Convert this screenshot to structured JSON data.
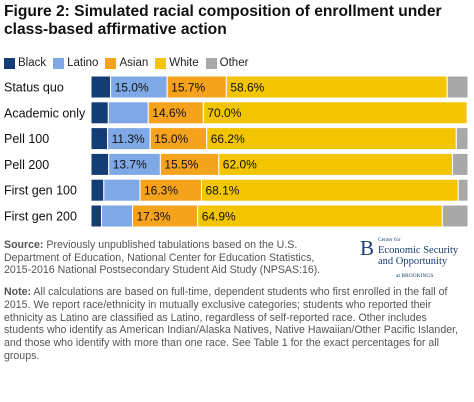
{
  "title": "Figure 2: Simulated racial composition of enrollment under class-based affirmative action",
  "colors": {
    "Black": "#143d75",
    "Latino": "#7fa8e6",
    "Asian": "#f5a21c",
    "White": "#f2c500",
    "Other": "#a8a8a8",
    "separator": "#ffffff",
    "label_text": "#111111"
  },
  "chart_data": {
    "type": "bar",
    "orientation": "horizontal",
    "stacked": true,
    "normalized": true,
    "xlim": [
      0,
      100
    ],
    "unit": "%",
    "categories": [
      "Status quo",
      "Academic only",
      "Pell 100",
      "Pell 200",
      "First gen 100",
      "First gen 200"
    ],
    "series": [
      {
        "name": "Black",
        "values": [
          5.2,
          4.6,
          4.4,
          4.7,
          3.4,
          2.8
        ]
      },
      {
        "name": "Latino",
        "values": [
          15.0,
          10.6,
          11.3,
          13.7,
          9.6,
          8.2
        ]
      },
      {
        "name": "Asian",
        "values": [
          15.7,
          14.6,
          15.0,
          15.5,
          16.3,
          17.3
        ]
      },
      {
        "name": "White",
        "values": [
          58.6,
          70.0,
          66.2,
          62.0,
          68.1,
          64.9
        ]
      },
      {
        "name": "Other",
        "values": [
          5.5,
          0.2,
          3.1,
          4.1,
          2.6,
          6.8
        ]
      }
    ],
    "data_labels": [
      [
        "",
        "15.0%",
        "15.7%",
        "58.6%",
        ""
      ],
      [
        "",
        "",
        "14.6%",
        "70.0%",
        ""
      ],
      [
        "",
        "11.3%",
        "15.0%",
        "66.2%",
        ""
      ],
      [
        "",
        "13.7%",
        "15.5%",
        "62.0%",
        ""
      ],
      [
        "",
        "",
        "16.3%",
        "68.1%",
        ""
      ],
      [
        "",
        "",
        "17.3%",
        "64.9%",
        ""
      ]
    ],
    "legend_position": "top-left",
    "grid": false
  },
  "source": {
    "label": "Source:",
    "text": " Previously unpublished tabulations based on the U.S. Department of Education, National Center for Education Statistics, 2015-2016 National Postsecondary Student Aid Study (NPSAS:16)."
  },
  "note": {
    "label": "Note:",
    "text": " All calculations are based on full-time, dependent students who first enrolled in the fall of 2015. We report race/ethnicity in mutually exclusive categories; students who reported their ethnicity as Latino are classified as Latino, regardless of self-reported race. Other includes students who identify as American Indian/Alaska Natives, Native Hawaiian/Other Pacific Islander, and those who identify with more than one race. See Table 1 for the exact percentages for all groups."
  },
  "logo": {
    "letter": "B",
    "small": "Center for",
    "line1": "Economic Security",
    "line2": "and Opportunity",
    "tiny": "at BROOKINGS"
  }
}
